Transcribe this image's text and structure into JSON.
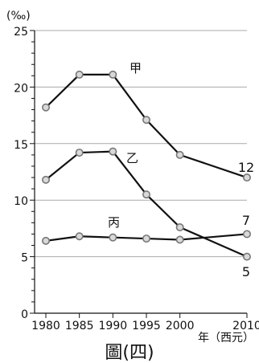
{
  "chart_data": {
    "type": "line",
    "unit_label": "(‰)",
    "x_axis_label": "年（西元）",
    "caption": "圖(四)",
    "x": [
      1980,
      1985,
      1990,
      1995,
      2000,
      2010
    ],
    "x_tick_labels": [
      "1980",
      "1985",
      "1990",
      "1995",
      "2000",
      "2010"
    ],
    "ylim": [
      0,
      25
    ],
    "y_ticks": [
      0,
      5,
      10,
      15,
      20,
      25
    ],
    "y_tick_labels": [
      "0",
      "5",
      "10",
      "15",
      "20",
      "25"
    ],
    "grid": true,
    "series": [
      {
        "name": "甲",
        "values": [
          18.2,
          21.1,
          21.1,
          17.1,
          14.0,
          12.0
        ],
        "end_label": "12"
      },
      {
        "name": "乙",
        "values": [
          11.8,
          14.2,
          14.3,
          10.5,
          7.6,
          5.0
        ],
        "end_label": "5"
      },
      {
        "name": "丙",
        "values": [
          6.4,
          6.8,
          6.7,
          6.6,
          6.5,
          7.0
        ],
        "end_label": "7"
      }
    ],
    "colors": {
      "line": "#111111",
      "grid": "#aaaaaa",
      "marker_fill": "#d9d9d9",
      "marker_stroke": "#777777",
      "axis": "#111111"
    }
  }
}
